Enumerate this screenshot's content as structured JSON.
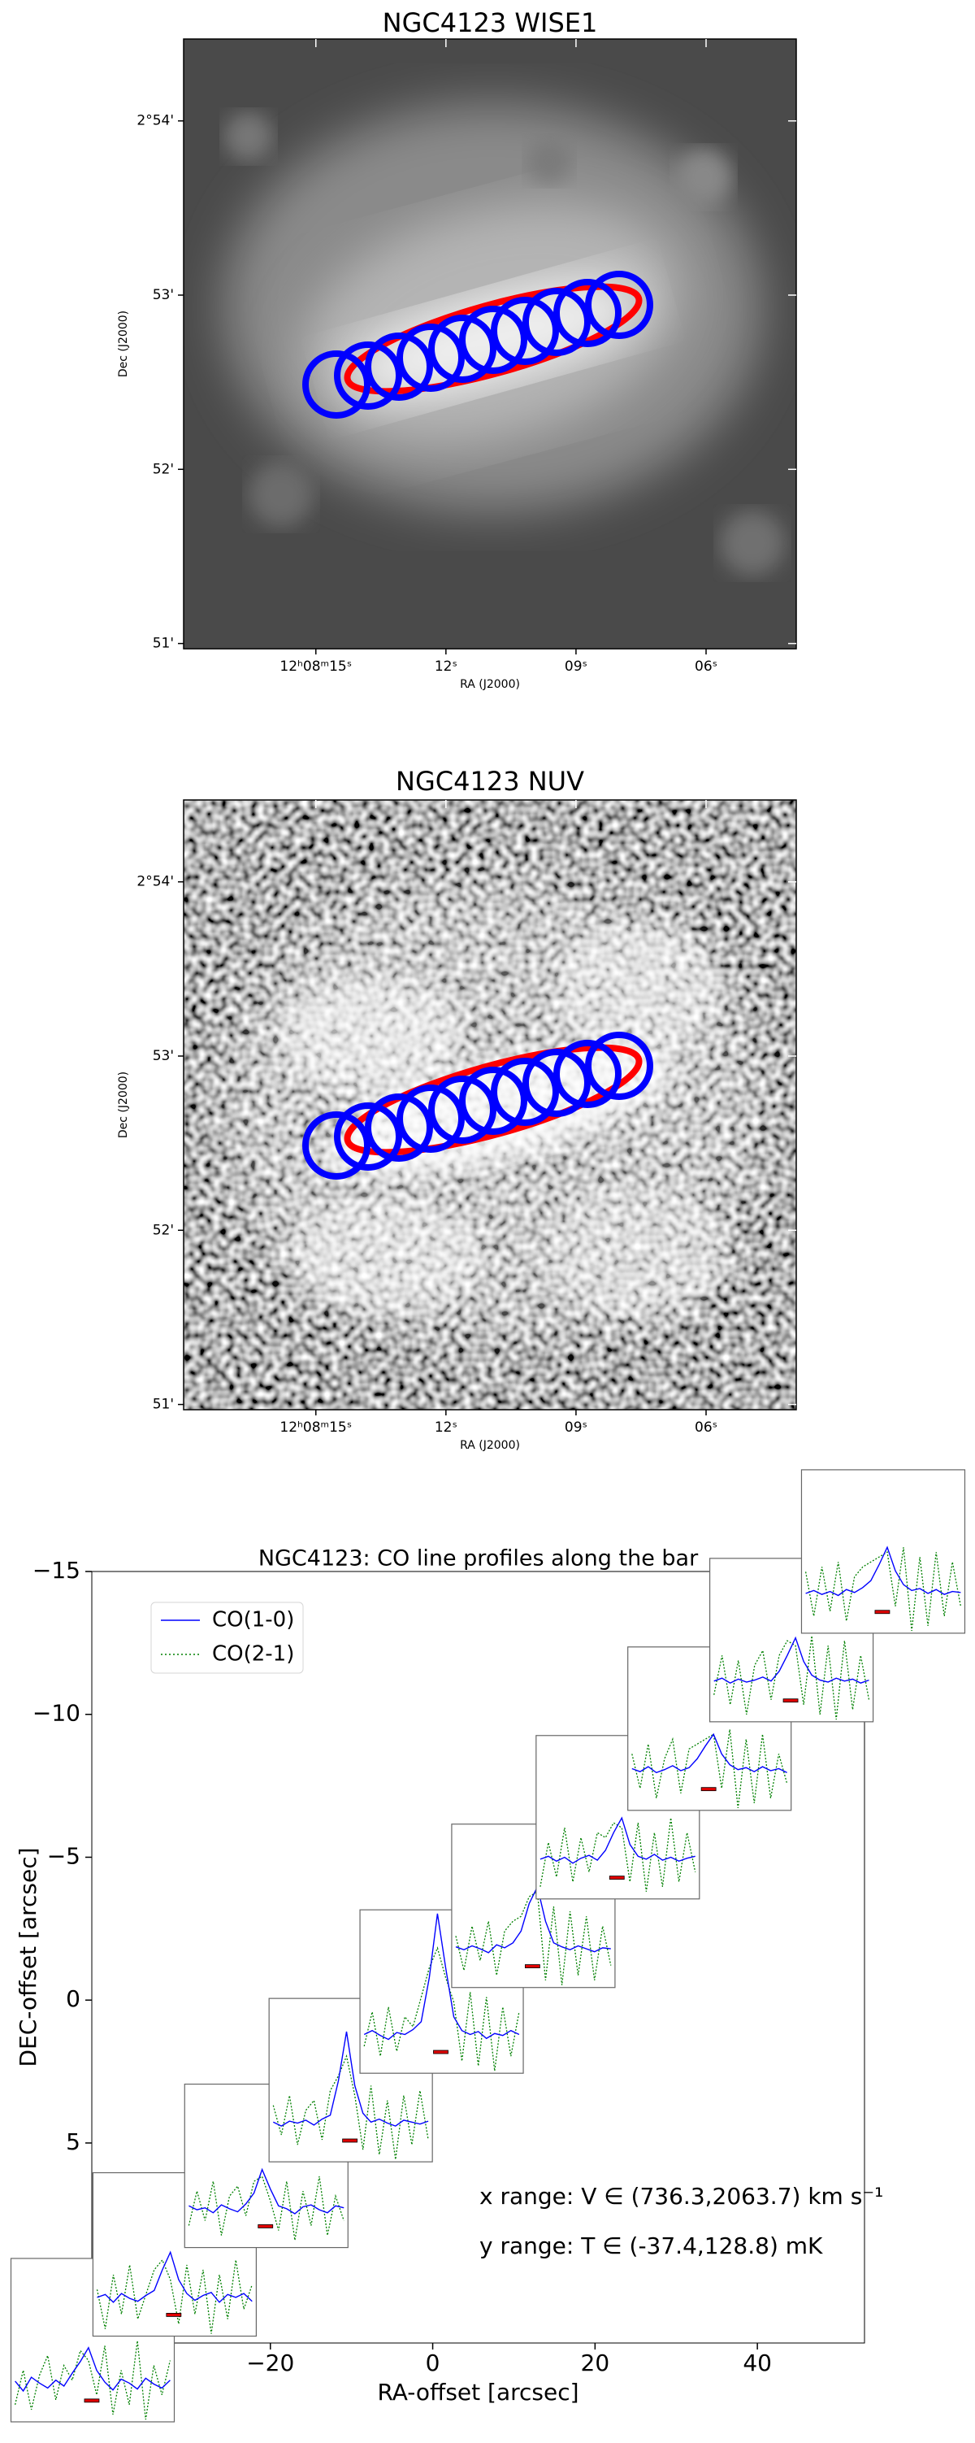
{
  "chart_data": [
    {
      "type": "image",
      "title": "NGC4123    WISE1",
      "xlabel": "RA (J2000)",
      "ylabel": "Dec (J2000)",
      "xlim": [
        18.05,
        3.92
      ],
      "ylim": [
        50.97,
        54.47
      ],
      "xticks": [
        {
          "value": 15,
          "label": "12ʰ08ᵐ15ˢ"
        },
        {
          "value": 12,
          "label": "12ˢ"
        },
        {
          "value": 9,
          "label": "09ˢ"
        },
        {
          "value": 6,
          "label": "06ˢ"
        }
      ],
      "yticks": [
        {
          "value": 51,
          "label": "51'"
        },
        {
          "value": 52,
          "label": "52'"
        },
        {
          "value": 53,
          "label": "53'"
        },
        {
          "value": 54,
          "label": "2°54'"
        }
      ]
    },
    {
      "type": "image",
      "title": "NGC4123    NUV",
      "xlabel": "RA (J2000)",
      "ylabel": "Dec (J2000)",
      "xlim": [
        18.05,
        3.92
      ],
      "ylim": [
        50.97,
        54.47
      ],
      "xticks": [
        {
          "value": 15,
          "label": "12ʰ08ᵐ15ˢ"
        },
        {
          "value": 12,
          "label": "12ˢ"
        },
        {
          "value": 9,
          "label": "09ˢ"
        },
        {
          "value": 6,
          "label": "06ˢ"
        }
      ],
      "yticks": [
        {
          "value": 51,
          "label": "51'"
        },
        {
          "value": 52,
          "label": "52'"
        },
        {
          "value": 53,
          "label": "53'"
        },
        {
          "value": 54,
          "label": "2°54'"
        }
      ]
    },
    {
      "type": "spectra_map",
      "title": "NGC4123: CO line profiles along the bar",
      "xlabel": "RA-offset [arcsec]",
      "ylabel": "DEC-offset [arcsec]",
      "xlim": [
        -42,
        53.2
      ],
      "ylim": [
        12,
        -15
      ],
      "xticks": [
        {
          "value": -20,
          "label": "−20"
        },
        0,
        20,
        40
      ],
      "yticks": [
        {
          "value": -15,
          "label": "−15"
        },
        {
          "value": -10,
          "label": "−10"
        },
        {
          "value": -5,
          "label": "−5"
        },
        0,
        5
      ],
      "legend": "upper left",
      "series": [
        {
          "name": "CO(1-0)",
          "color": "#0000ff"
        },
        {
          "name": "CO(2-1)",
          "color": "#008000"
        }
      ],
      "annotations": [
        "x range: V ∈ (736.3,2063.7) km s⁻¹",
        "y range: T ∈ (-37.4,128.8) mK"
      ],
      "inset_xlim": [
        736.3,
        2063.7
      ],
      "inset_ylim": [
        -37.4,
        128.8
      ],
      "inset_x": [
        770,
        836,
        902,
        968,
        1035,
        1101,
        1167,
        1234,
        1300,
        1366,
        1433,
        1499,
        1565,
        1632,
        1698,
        1764,
        1831,
        1897,
        1963,
        2030
      ],
      "insets": [
        {
          "x": -41.9,
          "y": 11.9,
          "values": [
            [
              4,
              -6,
              8,
              2,
              -3,
              5,
              -1,
              12,
              24,
              38,
              15,
              3,
              -5,
              6,
              2,
              -4,
              7,
              1,
              -3,
              5
            ],
            [
              -20,
              15,
              -25,
              10,
              30,
              -15,
              20,
              5,
              35,
              25,
              -10,
              40,
              -30,
              15,
              -20,
              45,
              -35,
              20,
              -10,
              25
            ]
          ]
        },
        {
          "x": -31.8,
          "y": 8.9,
          "values": [
            [
              2,
              5,
              -3,
              6,
              1,
              -2,
              4,
              9,
              30,
              48,
              20,
              6,
              -1,
              4,
              7,
              -3,
              5,
              2,
              6,
              -2
            ],
            [
              10,
              -30,
              25,
              -15,
              35,
              -20,
              5,
              30,
              40,
              20,
              -25,
              35,
              -15,
              30,
              -35,
              25,
              -20,
              40,
              -10,
              15
            ]
          ]
        },
        {
          "x": -20.5,
          "y": 5.8,
          "values": [
            [
              5,
              1,
              3,
              -2,
              6,
              2,
              -1,
              7,
              18,
              42,
              22,
              5,
              2,
              -3,
              4,
              6,
              1,
              -2,
              5,
              3
            ],
            [
              -15,
              20,
              -10,
              30,
              -25,
              15,
              25,
              -5,
              30,
              35,
              10,
              -20,
              30,
              -30,
              20,
              -15,
              35,
              -25,
              15,
              -10
            ]
          ]
        },
        {
          "x": -10.1,
          "y": 2.8,
          "values": [
            [
              3,
              -1,
              4,
              2,
              5,
              0,
              6,
              10,
              45,
              95,
              40,
              12,
              3,
              6,
              2,
              -1,
              5,
              3,
              1,
              4
            ],
            [
              20,
              -10,
              30,
              -20,
              15,
              25,
              -15,
              35,
              50,
              70,
              30,
              -25,
              40,
              -30,
              25,
              -35,
              30,
              -20,
              35,
              -15
            ]
          ]
        },
        {
          "x": 1.1,
          "y": -0.3,
          "values": [
            [
              2,
              6,
              1,
              -3,
              4,
              2,
              7,
              15,
              60,
              125,
              70,
              20,
              6,
              2,
              5,
              -2,
              3,
              1,
              6,
              2
            ],
            [
              -10,
              25,
              -20,
              30,
              -15,
              20,
              10,
              40,
              70,
              90,
              60,
              35,
              -25,
              45,
              -30,
              40,
              -35,
              30,
              -20,
              25
            ]
          ]
        },
        {
          "x": 12.4,
          "y": -3.3,
          "values": [
            [
              4,
              1,
              5,
              2,
              -2,
              6,
              3,
              8,
              20,
              48,
              65,
              30,
              8,
              4,
              1,
              5,
              2,
              -1,
              3,
              2
            ],
            [
              15,
              -20,
              25,
              -10,
              30,
              -25,
              20,
              30,
              35,
              55,
              60,
              -30,
              45,
              -35,
              40,
              -25,
              35,
              -30,
              25,
              -15
            ]
          ]
        },
        {
          "x": 22.8,
          "y": -6.4,
          "values": [
            [
              3,
              6,
              1,
              5,
              -1,
              4,
              7,
              2,
              12,
              30,
              45,
              18,
              6,
              3,
              8,
              2,
              5,
              1,
              4,
              6
            ],
            [
              -25,
              20,
              -15,
              35,
              -20,
              25,
              -10,
              30,
              25,
              40,
              35,
              -20,
              40,
              -30,
              30,
              -25,
              45,
              -20,
              30,
              -10
            ]
          ]
        },
        {
          "x": 34.1,
          "y": -9.5,
          "values": [
            [
              5,
              2,
              7,
              1,
              4,
              8,
              3,
              6,
              15,
              28,
              40,
              20,
              9,
              4,
              6,
              2,
              7,
              3,
              5,
              1
            ],
            [
              20,
              -15,
              30,
              -25,
              15,
              35,
              -20,
              25,
              30,
              35,
              40,
              -15,
              45,
              -35,
              35,
              -30,
              40,
              -25,
              20,
              -10
            ]
          ]
        },
        {
          "x": 44.2,
          "y": -12.6,
          "values": [
            [
              4,
              7,
              2,
              6,
              3,
              5,
              8,
              4,
              14,
              30,
              48,
              24,
              10,
              5,
              3,
              7,
              4,
              6,
              2,
              5
            ],
            [
              -10,
              30,
              -20,
              25,
              -30,
              20,
              35,
              -15,
              30,
              45,
              40,
              -20,
              50,
              -30,
              40,
              -35,
              45,
              -25,
              30,
              -15
            ]
          ]
        },
        {
          "x": 55.5,
          "y": -15.7,
          "values": [
            [
              3,
              6,
              2,
              5,
              1,
              7,
              4,
              9,
              16,
              32,
              50,
              26,
              12,
              6,
              8,
              3,
              7,
              2,
              5,
              4
            ],
            [
              25,
              -20,
              30,
              -15,
              35,
              -25,
              20,
              30,
              35,
              40,
              45,
              -10,
              50,
              -35,
              40,
              -30,
              45,
              -20,
              35,
              -10
            ]
          ]
        }
      ]
    }
  ]
}
